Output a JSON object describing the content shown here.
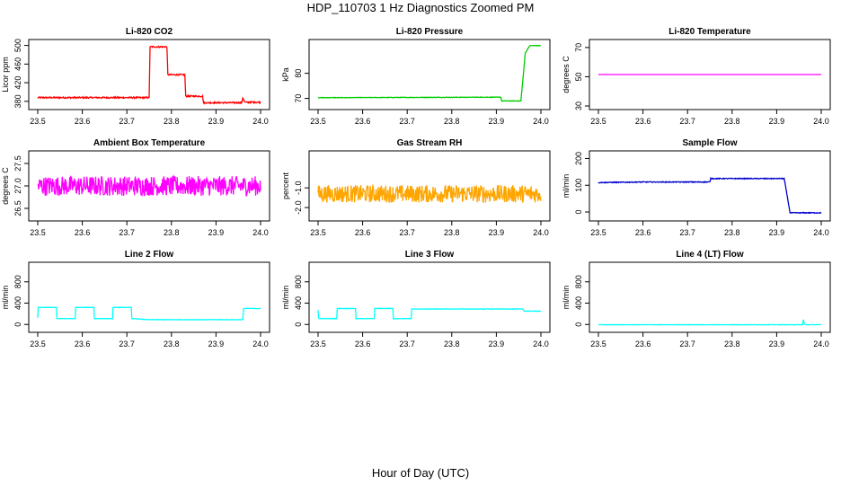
{
  "figure": {
    "title": "HDP_110703  1 Hz Diagnostics Zoomed PM",
    "xlabel": "Hour of Day (UTC)"
  },
  "chart_data": [
    {
      "type": "line",
      "title": "Li-820 CO2",
      "ylabel": "Licor ppm",
      "color": "#ff0000",
      "xlim": [
        23.5,
        24.0
      ],
      "ylim": [
        370,
        505
      ],
      "xticks": [
        "23.5",
        "23.6",
        "23.7",
        "23.8",
        "23.9",
        "24.0"
      ],
      "yticks": [
        "380",
        "420",
        "460",
        "500"
      ],
      "noise": 1.5,
      "x": [
        23.5,
        23.75,
        23.752,
        23.79,
        23.792,
        23.83,
        23.832,
        23.87,
        23.872,
        23.958,
        23.96,
        23.964,
        23.966,
        24.0
      ],
      "y": [
        388,
        388,
        497,
        497,
        437,
        437,
        391,
        391,
        377,
        377,
        388,
        379,
        378,
        378
      ]
    },
    {
      "type": "line",
      "title": "Li-820 Pressure",
      "ylabel": "kPa",
      "color": "#00cc00",
      "xlim": [
        23.5,
        24.0
      ],
      "ylim": [
        67,
        92
      ],
      "xticks": [
        "23.5",
        "23.6",
        "23.7",
        "23.8",
        "23.9",
        "24.0"
      ],
      "yticks": [
        "70",
        "80"
      ],
      "noise": 0.1,
      "x": [
        23.5,
        23.91,
        23.912,
        23.955,
        23.965,
        23.975,
        24.0
      ],
      "y": [
        70.3,
        70.5,
        69.0,
        69.0,
        88,
        91,
        91
      ]
    },
    {
      "type": "line",
      "title": "Li-820 Temperature",
      "ylabel": "degrees C",
      "color": "#ff00ff",
      "xlim": [
        23.5,
        24.0
      ],
      "ylim": [
        30,
        73
      ],
      "xticks": [
        "23.5",
        "23.6",
        "23.7",
        "23.8",
        "23.9",
        "24.0"
      ],
      "yticks": [
        "30",
        "50",
        "70"
      ],
      "noise": 0,
      "x": [
        23.5,
        24.0
      ],
      "y": [
        51.5,
        51.5
      ]
    },
    {
      "type": "line",
      "title": "Ambient Box Temperature",
      "ylabel": "degrees C",
      "color": "#ff00ff",
      "xlim": [
        23.5,
        24.0
      ],
      "ylim": [
        26.3,
        27.7
      ],
      "xticks": [
        "23.5",
        "23.6",
        "23.7",
        "23.8",
        "23.9",
        "24.0"
      ],
      "yticks": [
        "26.5",
        "27.0",
        "27.5"
      ],
      "noise": 0.22,
      "x": [
        23.5,
        24.0
      ],
      "y": [
        27.0,
        27.0
      ]
    },
    {
      "type": "line",
      "title": "Gas Stream RH",
      "ylabel": "percent",
      "color": "#ffa500",
      "xlim": [
        23.5,
        24.0
      ],
      "ylim": [
        -2.5,
        0.7
      ],
      "xticks": [
        "23.5",
        "23.6",
        "23.7",
        "23.8",
        "23.9",
        "24.0"
      ],
      "yticks": [
        "-2.0",
        "-1.0"
      ],
      "noise": 0.45,
      "x": [
        23.5,
        24.0
      ],
      "y": [
        -1.3,
        -1.3
      ]
    },
    {
      "type": "line",
      "title": "Sample Flow",
      "ylabel": "ml/min",
      "color": "#0000cc",
      "xlim": [
        23.5,
        24.0
      ],
      "ylim": [
        -20,
        215
      ],
      "xticks": [
        "23.5",
        "23.6",
        "23.7",
        "23.8",
        "23.9",
        "24.0"
      ],
      "yticks": [
        "0",
        "100",
        "200"
      ],
      "noise": 1.5,
      "x": [
        23.5,
        23.6,
        23.75,
        23.752,
        23.917,
        23.93,
        24.0
      ],
      "y": [
        110,
        112,
        112,
        125,
        125,
        -3,
        -3
      ]
    },
    {
      "type": "line",
      "title": "Line 2 Flow",
      "ylabel": "ml/min",
      "color": "#00ffff",
      "xlim": [
        23.5,
        24.0
      ],
      "ylim": [
        -80,
        1100
      ],
      "xticks": [
        "23.5",
        "23.6",
        "23.7",
        "23.8",
        "23.9",
        "24.0"
      ],
      "yticks": [
        "0",
        "400",
        "800"
      ],
      "noise": 4,
      "x": [
        23.5,
        23.501,
        23.542,
        23.543,
        23.584,
        23.585,
        23.626,
        23.627,
        23.668,
        23.669,
        23.71,
        23.711,
        23.75,
        23.96,
        23.962,
        24.0
      ],
      "y": [
        130,
        320,
        320,
        110,
        110,
        320,
        320,
        110,
        110,
        320,
        320,
        110,
        90,
        90,
        300,
        300
      ]
    },
    {
      "type": "line",
      "title": "Line 3 Flow",
      "ylabel": "ml/min",
      "color": "#00ffff",
      "xlim": [
        23.5,
        24.0
      ],
      "ylim": [
        -80,
        1100
      ],
      "xticks": [
        "23.5",
        "23.6",
        "23.7",
        "23.8",
        "23.9",
        "24.0"
      ],
      "yticks": [
        "0",
        "400",
        "800"
      ],
      "noise": 4,
      "x": [
        23.5,
        23.501,
        23.503,
        23.542,
        23.543,
        23.584,
        23.585,
        23.626,
        23.627,
        23.668,
        23.669,
        23.709,
        23.71,
        23.96,
        23.962,
        24.0
      ],
      "y": [
        270,
        120,
        110,
        110,
        300,
        300,
        110,
        110,
        300,
        300,
        110,
        110,
        290,
        290,
        250,
        250
      ]
    },
    {
      "type": "line",
      "title": "Line 4 (LT) Flow",
      "ylabel": "ml/min",
      "color": "#00ffff",
      "xlim": [
        23.5,
        24.0
      ],
      "ylim": [
        -80,
        1100
      ],
      "xticks": [
        "23.5",
        "23.6",
        "23.7",
        "23.8",
        "23.9",
        "24.0"
      ],
      "yticks": [
        "0",
        "400",
        "800"
      ],
      "noise": 3,
      "x": [
        23.5,
        23.958,
        23.96,
        23.962,
        23.966,
        24.0
      ],
      "y": [
        -5,
        -5,
        90,
        10,
        -5,
        -5
      ]
    }
  ]
}
